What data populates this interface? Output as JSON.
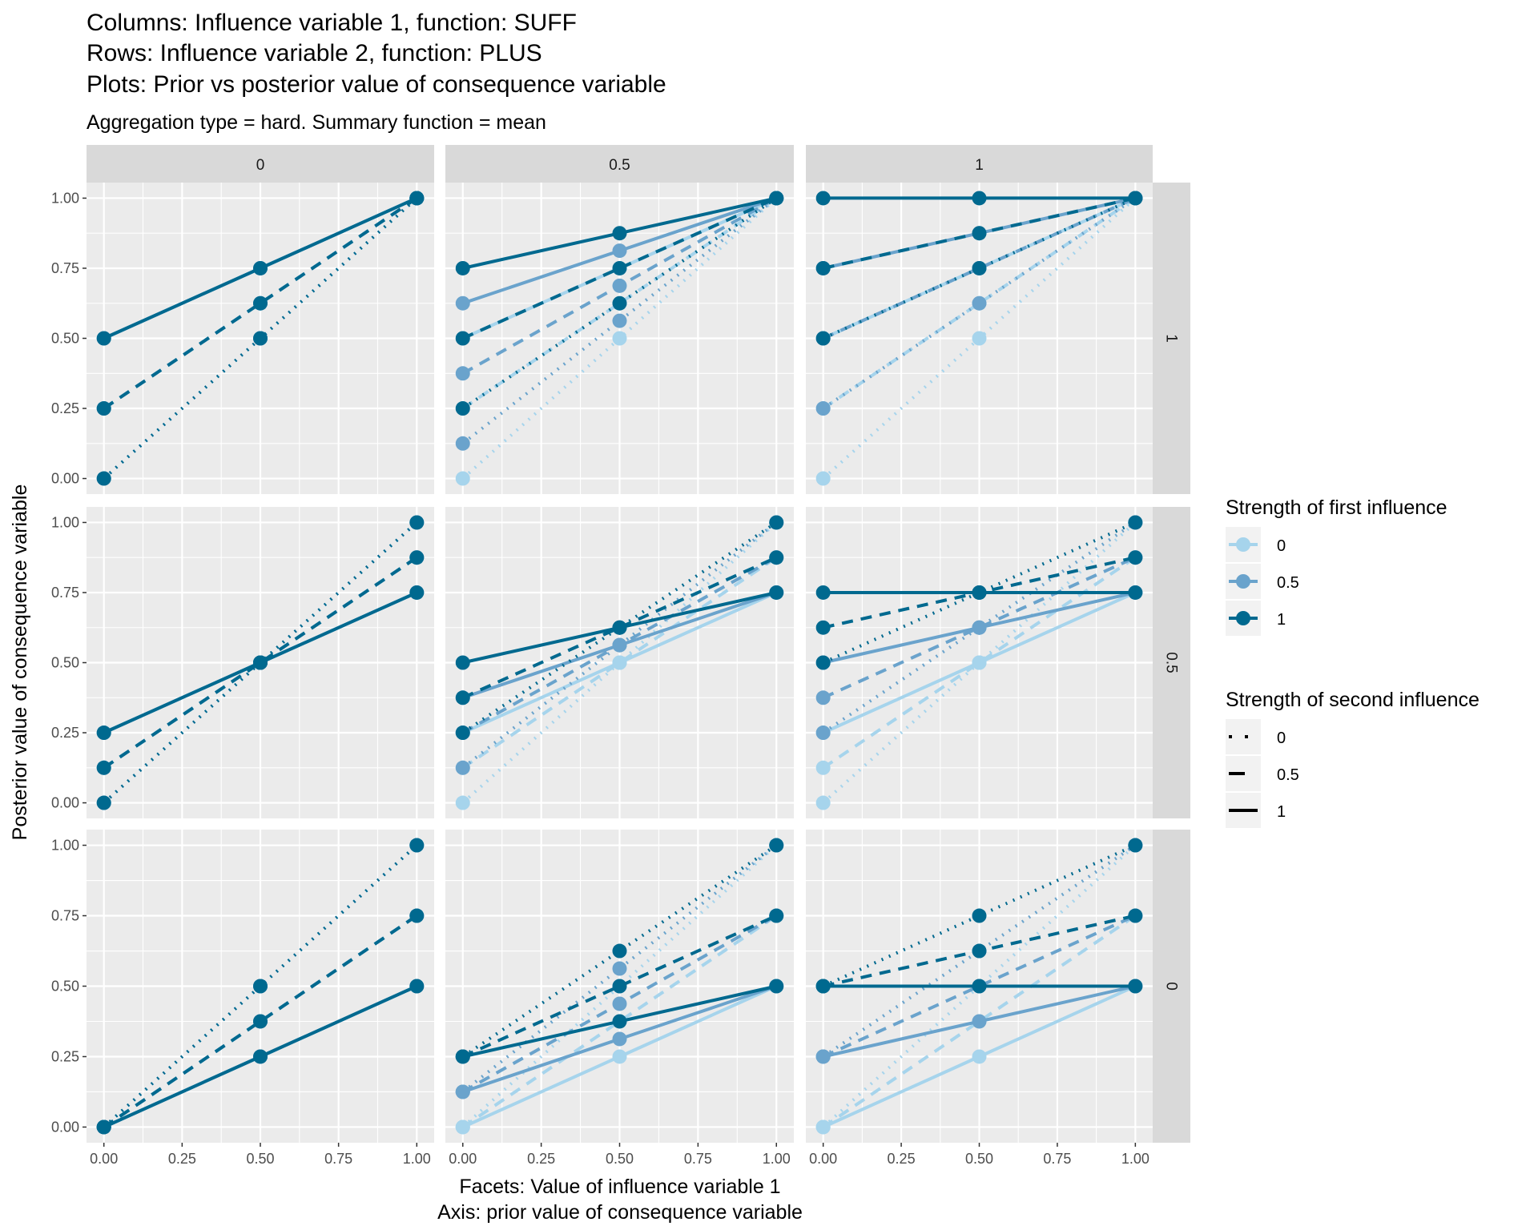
{
  "chart_data": {
    "type": "line",
    "title_lines": [
      "Columns: Influence variable 1, function: SUFF",
      "Rows: Influence variable 2, function: PLUS",
      "Plots: Prior vs posterior value of consequence variable"
    ],
    "subtitle": "Aggregation type = hard. Summary function = mean",
    "xlabel_lines": [
      "Facets: Value of influence variable 1",
      "Axis: prior value of consequence variable"
    ],
    "ylabel": "Posterior value of consequence variable",
    "x_ticks": [
      "0.00",
      "0.25",
      "0.50",
      "0.75",
      "1.00"
    ],
    "y_ticks": [
      "0.00",
      "0.25",
      "0.50",
      "0.75",
      "1.00"
    ],
    "xlim": [
      0,
      1
    ],
    "ylim": [
      0,
      1
    ],
    "grid": true,
    "facet_columns": {
      "variable": "Value of influence variable 1",
      "labels": [
        "0",
        "0.5",
        "1"
      ]
    },
    "facet_rows": {
      "variable": "Value of influence variable 2",
      "labels": [
        "1",
        "0.5",
        "0"
      ]
    },
    "x": [
      0,
      0.5,
      1
    ],
    "legend_position": "right",
    "legend_color": {
      "title": "Strength of first influence",
      "entries": [
        {
          "label": "0",
          "color": "#a6d4ec"
        },
        {
          "label": "0.5",
          "color": "#6aa3cc"
        },
        {
          "label": "1",
          "color": "#00698f"
        }
      ]
    },
    "legend_linetype": {
      "title": "Strength of second influence",
      "entries": [
        {
          "label": "0",
          "linetype": "dotted"
        },
        {
          "label": "0.5",
          "linetype": "dashed"
        },
        {
          "label": "1",
          "linetype": "solid"
        }
      ]
    },
    "panels": [
      {
        "row": "1",
        "col": "0",
        "series": [
          {
            "s1": "0",
            "s2": "0",
            "y": [
              0,
              0.5,
              1
            ]
          },
          {
            "s1": "0",
            "s2": "0.5",
            "y": [
              0.25,
              0.625,
              1
            ]
          },
          {
            "s1": "0",
            "s2": "1",
            "y": [
              0.5,
              0.75,
              1
            ]
          },
          {
            "s1": "0.5",
            "s2": "0",
            "y": [
              0,
              0.5,
              1
            ]
          },
          {
            "s1": "0.5",
            "s2": "0.5",
            "y": [
              0.25,
              0.625,
              1
            ]
          },
          {
            "s1": "0.5",
            "s2": "1",
            "y": [
              0.5,
              0.75,
              1
            ]
          },
          {
            "s1": "1",
            "s2": "0",
            "y": [
              0,
              0.5,
              1
            ]
          },
          {
            "s1": "1",
            "s2": "0.5",
            "y": [
              0.25,
              0.625,
              1
            ]
          },
          {
            "s1": "1",
            "s2": "1",
            "y": [
              0.5,
              0.75,
              1
            ]
          }
        ]
      },
      {
        "row": "1",
        "col": "0.5",
        "series": [
          {
            "s1": "0",
            "s2": "0",
            "y": [
              0,
              0.5,
              1
            ]
          },
          {
            "s1": "0",
            "s2": "0.5",
            "y": [
              0.25,
              0.625,
              1
            ]
          },
          {
            "s1": "0",
            "s2": "1",
            "y": [
              0.5,
              0.75,
              1
            ]
          },
          {
            "s1": "0.5",
            "s2": "0",
            "y": [
              0.125,
              0.5625,
              1
            ]
          },
          {
            "s1": "0.5",
            "s2": "0.5",
            "y": [
              0.375,
              0.6875,
              1
            ]
          },
          {
            "s1": "0.5",
            "s2": "1",
            "y": [
              0.625,
              0.8125,
              1
            ]
          },
          {
            "s1": "1",
            "s2": "0",
            "y": [
              0.25,
              0.625,
              1
            ]
          },
          {
            "s1": "1",
            "s2": "0.5",
            "y": [
              0.5,
              0.75,
              1
            ]
          },
          {
            "s1": "1",
            "s2": "1",
            "y": [
              0.75,
              0.875,
              1
            ]
          }
        ]
      },
      {
        "row": "1",
        "col": "1",
        "series": [
          {
            "s1": "0",
            "s2": "0",
            "y": [
              0,
              0.5,
              1
            ]
          },
          {
            "s1": "0",
            "s2": "0.5",
            "y": [
              0.25,
              0.625,
              1
            ]
          },
          {
            "s1": "0",
            "s2": "1",
            "y": [
              0.5,
              0.75,
              1
            ]
          },
          {
            "s1": "0.5",
            "s2": "0",
            "y": [
              0.25,
              0.625,
              1
            ]
          },
          {
            "s1": "0.5",
            "s2": "0.5",
            "y": [
              0.5,
              0.75,
              1
            ]
          },
          {
            "s1": "0.5",
            "s2": "1",
            "y": [
              0.75,
              0.875,
              1
            ]
          },
          {
            "s1": "1",
            "s2": "0",
            "y": [
              0.5,
              0.75,
              1
            ]
          },
          {
            "s1": "1",
            "s2": "0.5",
            "y": [
              0.75,
              0.875,
              1
            ]
          },
          {
            "s1": "1",
            "s2": "1",
            "y": [
              1,
              1,
              1
            ]
          }
        ]
      },
      {
        "row": "0.5",
        "col": "0",
        "series": [
          {
            "s1": "0",
            "s2": "0",
            "y": [
              0,
              0.5,
              1
            ]
          },
          {
            "s1": "0",
            "s2": "0.5",
            "y": [
              0.125,
              0.5,
              0.875
            ]
          },
          {
            "s1": "0",
            "s2": "1",
            "y": [
              0.25,
              0.5,
              0.75
            ]
          },
          {
            "s1": "0.5",
            "s2": "0",
            "y": [
              0,
              0.5,
              1
            ]
          },
          {
            "s1": "0.5",
            "s2": "0.5",
            "y": [
              0.125,
              0.5,
              0.875
            ]
          },
          {
            "s1": "0.5",
            "s2": "1",
            "y": [
              0.25,
              0.5,
              0.75
            ]
          },
          {
            "s1": "1",
            "s2": "0",
            "y": [
              0,
              0.5,
              1
            ]
          },
          {
            "s1": "1",
            "s2": "0.5",
            "y": [
              0.125,
              0.5,
              0.875
            ]
          },
          {
            "s1": "1",
            "s2": "1",
            "y": [
              0.25,
              0.5,
              0.75
            ]
          }
        ]
      },
      {
        "row": "0.5",
        "col": "0.5",
        "series": [
          {
            "s1": "0",
            "s2": "0",
            "y": [
              0,
              0.5,
              1
            ]
          },
          {
            "s1": "0",
            "s2": "0.5",
            "y": [
              0.125,
              0.5,
              0.875
            ]
          },
          {
            "s1": "0",
            "s2": "1",
            "y": [
              0.25,
              0.5,
              0.75
            ]
          },
          {
            "s1": "0.5",
            "s2": "0",
            "y": [
              0.125,
              0.5625,
              1
            ]
          },
          {
            "s1": "0.5",
            "s2": "0.5",
            "y": [
              0.25,
              0.5625,
              0.875
            ]
          },
          {
            "s1": "0.5",
            "s2": "1",
            "y": [
              0.375,
              0.5625,
              0.75
            ]
          },
          {
            "s1": "1",
            "s2": "0",
            "y": [
              0.25,
              0.625,
              1
            ]
          },
          {
            "s1": "1",
            "s2": "0.5",
            "y": [
              0.375,
              0.625,
              0.875
            ]
          },
          {
            "s1": "1",
            "s2": "1",
            "y": [
              0.5,
              0.625,
              0.75
            ]
          }
        ]
      },
      {
        "row": "0.5",
        "col": "1",
        "series": [
          {
            "s1": "0",
            "s2": "0",
            "y": [
              0,
              0.5,
              1
            ]
          },
          {
            "s1": "0",
            "s2": "0.5",
            "y": [
              0.125,
              0.5,
              0.875
            ]
          },
          {
            "s1": "0",
            "s2": "1",
            "y": [
              0.25,
              0.5,
              0.75
            ]
          },
          {
            "s1": "0.5",
            "s2": "0",
            "y": [
              0.25,
              0.625,
              1
            ]
          },
          {
            "s1": "0.5",
            "s2": "0.5",
            "y": [
              0.375,
              0.625,
              0.875
            ]
          },
          {
            "s1": "0.5",
            "s2": "1",
            "y": [
              0.5,
              0.625,
              0.75
            ]
          },
          {
            "s1": "1",
            "s2": "0",
            "y": [
              0.5,
              0.75,
              1
            ]
          },
          {
            "s1": "1",
            "s2": "0.5",
            "y": [
              0.625,
              0.75,
              0.875
            ]
          },
          {
            "s1": "1",
            "s2": "1",
            "y": [
              0.75,
              0.75,
              0.75
            ]
          }
        ]
      },
      {
        "row": "0",
        "col": "0",
        "series": [
          {
            "s1": "0",
            "s2": "0",
            "y": [
              0,
              0.5,
              1
            ]
          },
          {
            "s1": "0",
            "s2": "0.5",
            "y": [
              0,
              0.375,
              0.75
            ]
          },
          {
            "s1": "0",
            "s2": "1",
            "y": [
              0,
              0.25,
              0.5
            ]
          },
          {
            "s1": "0.5",
            "s2": "0",
            "y": [
              0,
              0.5,
              1
            ]
          },
          {
            "s1": "0.5",
            "s2": "0.5",
            "y": [
              0,
              0.375,
              0.75
            ]
          },
          {
            "s1": "0.5",
            "s2": "1",
            "y": [
              0,
              0.25,
              0.5
            ]
          },
          {
            "s1": "1",
            "s2": "0",
            "y": [
              0,
              0.5,
              1
            ]
          },
          {
            "s1": "1",
            "s2": "0.5",
            "y": [
              0,
              0.375,
              0.75
            ]
          },
          {
            "s1": "1",
            "s2": "1",
            "y": [
              0,
              0.25,
              0.5
            ]
          }
        ]
      },
      {
        "row": "0",
        "col": "0.5",
        "series": [
          {
            "s1": "0",
            "s2": "0",
            "y": [
              0,
              0.5,
              1
            ]
          },
          {
            "s1": "0",
            "s2": "0.5",
            "y": [
              0,
              0.375,
              0.75
            ]
          },
          {
            "s1": "0",
            "s2": "1",
            "y": [
              0,
              0.25,
              0.5
            ]
          },
          {
            "s1": "0.5",
            "s2": "0",
            "y": [
              0.125,
              0.5625,
              1
            ]
          },
          {
            "s1": "0.5",
            "s2": "0.5",
            "y": [
              0.125,
              0.4375,
              0.75
            ]
          },
          {
            "s1": "0.5",
            "s2": "1",
            "y": [
              0.125,
              0.3125,
              0.5
            ]
          },
          {
            "s1": "1",
            "s2": "0",
            "y": [
              0.25,
              0.625,
              1
            ]
          },
          {
            "s1": "1",
            "s2": "0.5",
            "y": [
              0.25,
              0.5,
              0.75
            ]
          },
          {
            "s1": "1",
            "s2": "1",
            "y": [
              0.25,
              0.375,
              0.5
            ]
          }
        ]
      },
      {
        "row": "0",
        "col": "1",
        "series": [
          {
            "s1": "0",
            "s2": "0",
            "y": [
              0,
              0.5,
              1
            ]
          },
          {
            "s1": "0",
            "s2": "0.5",
            "y": [
              0,
              0.375,
              0.75
            ]
          },
          {
            "s1": "0",
            "s2": "1",
            "y": [
              0,
              0.25,
              0.5
            ]
          },
          {
            "s1": "0.5",
            "s2": "0",
            "y": [
              0.25,
              0.625,
              1
            ]
          },
          {
            "s1": "0.5",
            "s2": "0.5",
            "y": [
              0.25,
              0.5,
              0.75
            ]
          },
          {
            "s1": "0.5",
            "s2": "1",
            "y": [
              0.25,
              0.375,
              0.5
            ]
          },
          {
            "s1": "1",
            "s2": "0",
            "y": [
              0.5,
              0.75,
              1
            ]
          },
          {
            "s1": "1",
            "s2": "0.5",
            "y": [
              0.5,
              0.625,
              0.75
            ]
          },
          {
            "s1": "1",
            "s2": "1",
            "y": [
              0.5,
              0.5,
              0.5
            ]
          }
        ]
      }
    ]
  }
}
